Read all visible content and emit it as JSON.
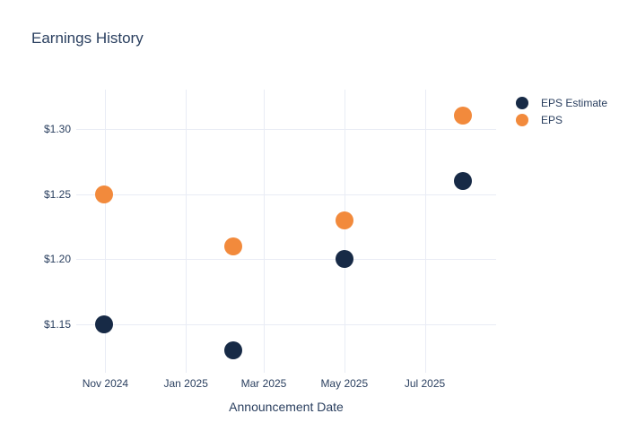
{
  "chart_data": {
    "type": "scatter",
    "title": "Earnings History",
    "x_axis": {
      "title": "Announcement Date",
      "range": [
        "2024-10-10",
        "2025-08-24"
      ],
      "ticks": [
        {
          "label": "Nov 2024",
          "date": "2024-11-01"
        },
        {
          "label": "Jan 2025",
          "date": "2025-01-01"
        },
        {
          "label": "Mar 2025",
          "date": "2025-03-01"
        },
        {
          "label": "May 2025",
          "date": "2025-05-01"
        },
        {
          "label": "Jul 2025",
          "date": "2025-07-01"
        }
      ]
    },
    "y_axis": {
      "range": [
        1.115,
        1.33
      ],
      "ticks": [
        {
          "label": "$1.30",
          "value": 1.3
        },
        {
          "label": "$1.25",
          "value": 1.25
        },
        {
          "label": "$1.20",
          "value": 1.2
        },
        {
          "label": "$1.15",
          "value": 1.15
        }
      ]
    },
    "series": [
      {
        "name": "EPS Estimate",
        "color": "#172a46",
        "points": [
          {
            "date": "2024-10-31",
            "value": 1.15
          },
          {
            "date": "2025-02-06",
            "value": 1.13
          },
          {
            "date": "2025-05-01",
            "value": 1.2
          },
          {
            "date": "2025-07-30",
            "value": 1.26
          }
        ]
      },
      {
        "name": "EPS",
        "color": "#f28a3c",
        "points": [
          {
            "date": "2024-10-31",
            "value": 1.25
          },
          {
            "date": "2025-02-06",
            "value": 1.21
          },
          {
            "date": "2025-05-01",
            "value": 1.23
          },
          {
            "date": "2025-07-30",
            "value": 1.31
          }
        ]
      }
    ],
    "legend": {
      "position": "right",
      "entries": [
        "EPS Estimate",
        "EPS"
      ]
    },
    "grid": true
  }
}
